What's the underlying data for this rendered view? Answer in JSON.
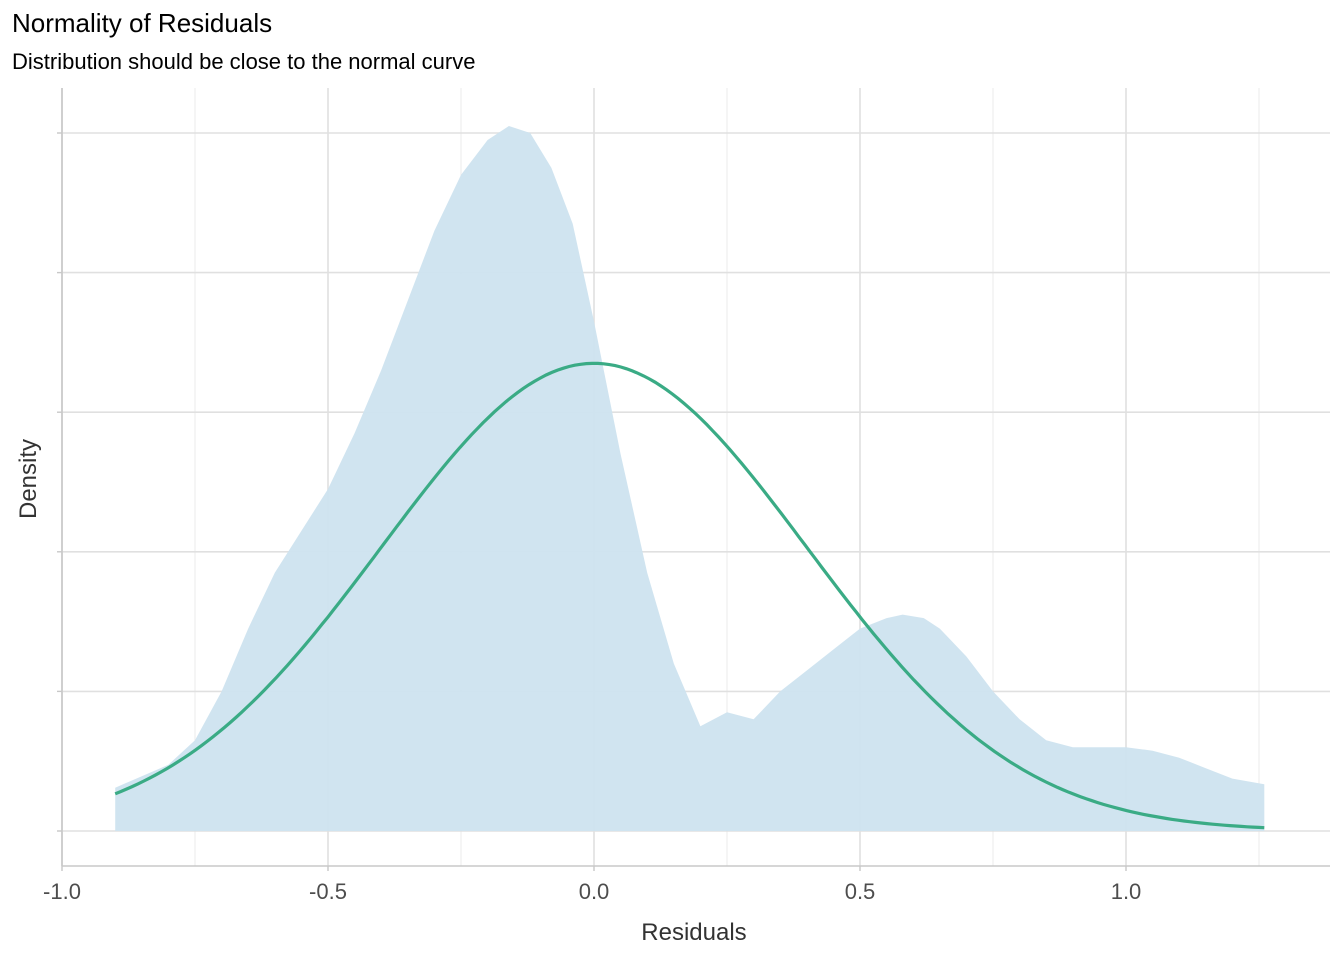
{
  "chart_data": {
    "type": "area",
    "title": "Normality of Residuals",
    "subtitle": "Distribution should be close to the normal curve",
    "xlabel": "Residuals",
    "ylabel": "Density",
    "xlim": [
      -1.0,
      1.3
    ],
    "ylim": [
      -0.05,
      1.0
    ],
    "x_ticks": [
      -1.0,
      -0.5,
      0.0,
      0.5,
      1.0
    ],
    "x_tick_labels": [
      "-1.0",
      "-0.5",
      "0.0",
      "0.5",
      "1.0"
    ],
    "y_tick_labels": [],
    "grid": true,
    "series": [
      {
        "kind": "density_area",
        "color": "#cde3ef",
        "x": [
          -0.9,
          -0.8,
          -0.75,
          -0.7,
          -0.65,
          -0.6,
          -0.55,
          -0.5,
          -0.45,
          -0.4,
          -0.35,
          -0.3,
          -0.25,
          -0.2,
          -0.16,
          -0.12,
          -0.08,
          -0.04,
          0.0,
          0.05,
          0.1,
          0.15,
          0.2,
          0.25,
          0.3,
          0.35,
          0.4,
          0.45,
          0.5,
          0.55,
          0.58,
          0.62,
          0.65,
          0.7,
          0.75,
          0.8,
          0.85,
          0.9,
          0.95,
          1.0,
          1.05,
          1.1,
          1.15,
          1.2,
          1.26
        ],
        "y": [
          0.062,
          0.095,
          0.13,
          0.2,
          0.29,
          0.37,
          0.43,
          0.49,
          0.57,
          0.66,
          0.76,
          0.86,
          0.94,
          0.99,
          1.01,
          1.0,
          0.95,
          0.87,
          0.73,
          0.54,
          0.37,
          0.24,
          0.15,
          0.17,
          0.16,
          0.2,
          0.23,
          0.26,
          0.29,
          0.305,
          0.31,
          0.305,
          0.29,
          0.25,
          0.2,
          0.16,
          0.13,
          0.12,
          0.12,
          0.12,
          0.115,
          0.105,
          0.09,
          0.075,
          0.067
        ]
      },
      {
        "kind": "normal_curve",
        "color": "#3aab85",
        "mean": 0.0,
        "sd": 0.4,
        "peak": 0.67,
        "x_range": [
          -0.9,
          1.26
        ]
      }
    ]
  }
}
